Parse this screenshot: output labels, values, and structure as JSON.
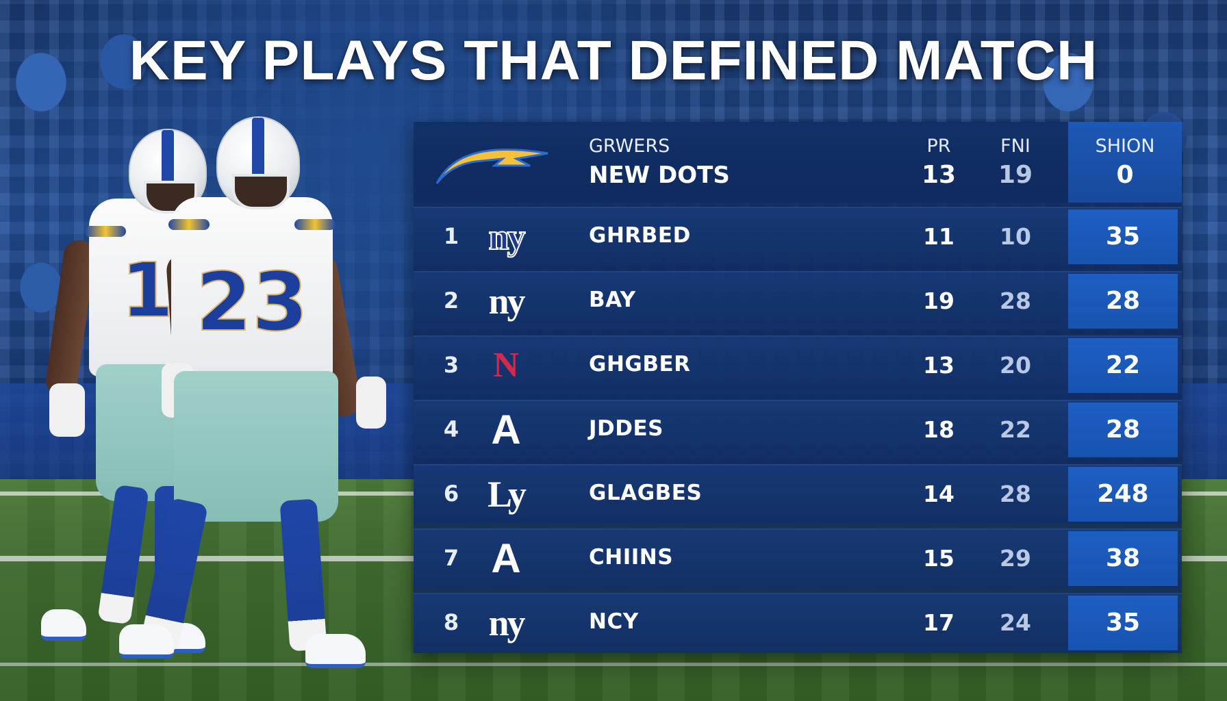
{
  "title": "KEY PLAYS THAT DEFINED MATCH",
  "colors": {
    "panel": "#102a5c",
    "highlight_column": "#1d5fc2",
    "text": "#ffffff",
    "secondary_text": "#b9c8e3"
  },
  "players": [
    {
      "jersey_number": "1"
    },
    {
      "jersey_number": "23"
    }
  ],
  "header": {
    "logo_icon": "lightning-bolt-logo",
    "team_top": "GRWERS",
    "team_bottom": "NEW DOTS",
    "columns": [
      {
        "label": "PR",
        "value": "13"
      },
      {
        "label": "FNI",
        "value": "19"
      },
      {
        "label": "SHION",
        "value": "0"
      }
    ]
  },
  "rows": [
    {
      "rank": "1",
      "logo": "ny",
      "logo_style": "outlined",
      "name": "GHRBED",
      "pr": "11",
      "fni": "10",
      "shion": "35"
    },
    {
      "rank": "2",
      "logo": "ny",
      "logo_style": "plain",
      "name": "BAY",
      "pr": "19",
      "fni": "28",
      "shion": "28"
    },
    {
      "rank": "3",
      "logo": "N",
      "logo_style": "red",
      "name": "GHGBER",
      "pr": "13",
      "fni": "20",
      "shion": "22"
    },
    {
      "rank": "4",
      "logo": "A",
      "logo_style": "sans",
      "name": "JDDES",
      "pr": "18",
      "fni": "22",
      "shion": "28"
    },
    {
      "rank": "6",
      "logo": "Ly",
      "logo_style": "plain",
      "name": "GLAGBES",
      "pr": "14",
      "fni": "28",
      "shion": "248"
    },
    {
      "rank": "7",
      "logo": "A",
      "logo_style": "sans",
      "name": "CHIINS",
      "pr": "15",
      "fni": "29",
      "shion": "38"
    },
    {
      "rank": "8",
      "logo": "ny",
      "logo_style": "plain",
      "name": "NCY",
      "pr": "17",
      "fni": "24",
      "shion": "35"
    }
  ]
}
